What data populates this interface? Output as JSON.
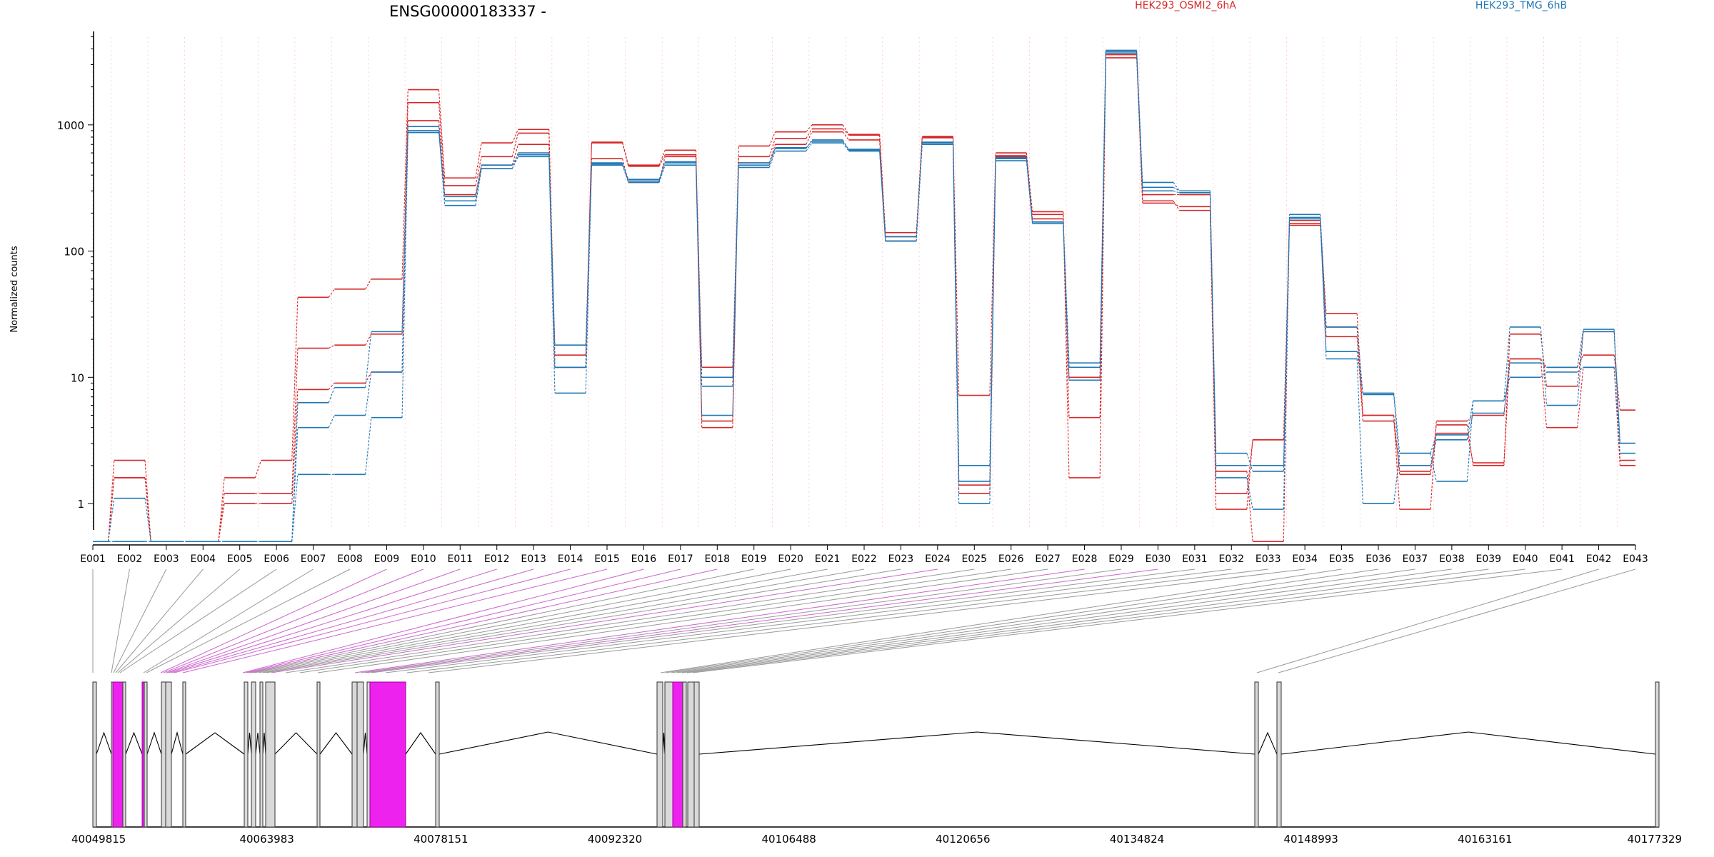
{
  "title": "ENSG00000183337 -",
  "legend": {
    "placement": "top",
    "entries": [
      {
        "label": "HEK293_OSMI2_6hA",
        "color": "#d62728"
      },
      {
        "label": "HEK293_TMG_6hB",
        "color": "#1f77b4"
      }
    ]
  },
  "colors": {
    "red": "#d62728",
    "blue": "#1f77b4",
    "highlight": "#ee22ee",
    "exon": "#d3d3d3"
  },
  "chart_data": {
    "type": "line",
    "title": "ENSG00000183337 -",
    "ylabel": "Normalized counts",
    "yscale": "log",
    "ylim": [
      0.47,
      5500
    ],
    "yticks": [
      1,
      10,
      100,
      1000
    ],
    "yticklabels": [
      "1",
      "10",
      "100",
      "1000"
    ],
    "grid": "vertical dotted lines at exon boundaries",
    "categories": [
      "E001",
      "E002",
      "E003",
      "E004",
      "E005",
      "E006",
      "E007",
      "E008",
      "E009",
      "E010",
      "E011",
      "E012",
      "E013",
      "E014",
      "E015",
      "E016",
      "E017",
      "E018",
      "E019",
      "E020",
      "E021",
      "E022",
      "E023",
      "E024",
      "E025",
      "E026",
      "E027",
      "E028",
      "E029",
      "E030",
      "E031",
      "E032",
      "E033",
      "E034",
      "E035",
      "E036",
      "E037",
      "E038",
      "E039",
      "E040",
      "E041",
      "E042",
      "E043"
    ],
    "series": [
      {
        "color": "#d62728",
        "values": [
          0.5,
          2.2,
          0.5,
          0.5,
          1.6,
          2.2,
          43,
          50,
          60,
          1900,
          380,
          720,
          920,
          15,
          730,
          480,
          630,
          4.0,
          680,
          880,
          1000,
          840,
          140,
          810,
          7.2,
          600,
          205,
          1.6,
          3600,
          240,
          225,
          0.9,
          3.2,
          165,
          32,
          5.0,
          0.9,
          4.5,
          5.0,
          14,
          12,
          15,
          5.5
        ]
      },
      {
        "color": "#d62728",
        "values": [
          0.5,
          1.6,
          0.5,
          0.5,
          1.2,
          1.2,
          17,
          18,
          22,
          1500,
          330,
          560,
          860,
          12,
          720,
          470,
          580,
          4.5,
          560,
          780,
          930,
          830,
          130,
          800,
          1.4,
          560,
          195,
          4.8,
          3800,
          250,
          210,
          1.2,
          3.2,
          160,
          25,
          5.0,
          1.7,
          4.2,
          2.0,
          22,
          8.5,
          23,
          2.2
        ]
      },
      {
        "color": "#d62728",
        "values": [
          0.5,
          1.6,
          0.5,
          0.5,
          1.0,
          1.0,
          8,
          9,
          11,
          1080,
          280,
          480,
          700,
          12,
          540,
          350,
          560,
          12,
          500,
          700,
          880,
          760,
          120,
          790,
          1.2,
          570,
          180,
          10,
          3400,
          280,
          280,
          1.8,
          0.5,
          175,
          21,
          4.5,
          1.8,
          3.6,
          2.1,
          14,
          4.0,
          12,
          2.0
        ]
      },
      {
        "color": "#1f77b4",
        "values": [
          0.5,
          1.1,
          0.5,
          0.5,
          0.5,
          0.5,
          6.3,
          8.3,
          23,
          970,
          250,
          450,
          600,
          18,
          500,
          370,
          510,
          10,
          500,
          650,
          760,
          630,
          130,
          730,
          2.0,
          550,
          170,
          13,
          3900,
          350,
          300,
          2.0,
          2.0,
          195,
          25,
          7.3,
          2.0,
          3.2,
          5.2,
          13,
          12,
          24,
          3.0
        ]
      },
      {
        "color": "#1f77b4",
        "values": [
          0.5,
          0.5,
          0.5,
          0.5,
          0.5,
          0.5,
          4.0,
          5.0,
          11,
          900,
          230,
          450,
          560,
          7.5,
          480,
          350,
          480,
          8.5,
          460,
          620,
          720,
          620,
          120,
          700,
          1.0,
          520,
          165,
          9.5,
          3700,
          320,
          300,
          1.6,
          0.9,
          185,
          16,
          7.5,
          2.5,
          3.5,
          6.5,
          10,
          11,
          12,
          2.5
        ]
      },
      {
        "color": "#1f77b4",
        "values": [
          0.5,
          0.5,
          0.5,
          0.5,
          0.5,
          0.5,
          1.7,
          1.7,
          4.8,
          870,
          270,
          480,
          580,
          12,
          490,
          360,
          500,
          5.0,
          480,
          660,
          740,
          640,
          120,
          720,
          1.5,
          540,
          170,
          12,
          3800,
          300,
          290,
          2.5,
          1.8,
          180,
          14,
          1.0,
          2.5,
          1.5,
          6.5,
          25,
          6.0,
          23,
          3.0
        ]
      }
    ]
  },
  "gene_model": {
    "coordinate_labels": [
      "40049815",
      "40063983",
      "40078151",
      "40092320",
      "40106488",
      "40120656",
      "40134824",
      "40148993",
      "40163161",
      "40177329"
    ],
    "coordinate_range": [
      40049815,
      40177329
    ]
  }
}
